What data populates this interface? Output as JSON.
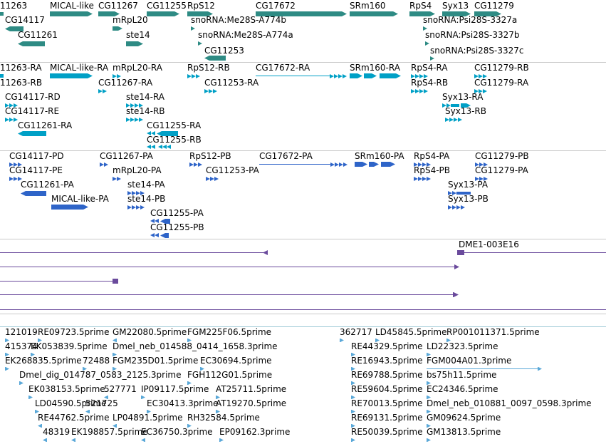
{
  "colors": {
    "gene": "#2e8b84",
    "transcript": "#00a0c6",
    "protein": "#2e64c8",
    "clone": "#6a4a9c",
    "est": "#5aa8d8",
    "separator": "#c8c8c8",
    "separator_blue": "#9fcbd8"
  },
  "tracks": [
    {
      "name": "genes",
      "features": [
        {
          "label": "11263",
          "kind": "gene"
        },
        {
          "label": "MICAL-like",
          "kind": "gene"
        },
        {
          "label": "CG11267",
          "kind": "gene"
        },
        {
          "label": "CG11255",
          "kind": "gene"
        },
        {
          "label": "RpS12",
          "kind": "gene"
        },
        {
          "label": "CG17672",
          "kind": "gene"
        },
        {
          "label": "SRm160",
          "kind": "gene"
        },
        {
          "label": "RpS4",
          "kind": "gene"
        },
        {
          "label": "Syx13",
          "kind": "gene"
        },
        {
          "label": "CG11279",
          "kind": "gene"
        },
        {
          "label": "CG14117",
          "kind": "gene"
        },
        {
          "label": "mRpL20",
          "kind": "gene"
        },
        {
          "label": "snoRNA:Me28S-A774b",
          "kind": "gene"
        },
        {
          "label": "snoRNA:Psi28S-3327a",
          "kind": "gene"
        },
        {
          "label": "CG11261",
          "kind": "gene"
        },
        {
          "label": "ste14",
          "kind": "gene"
        },
        {
          "label": "snoRNA:Me28S-A774a",
          "kind": "gene"
        },
        {
          "label": "snoRNA:Psi28S-3327b",
          "kind": "gene"
        },
        {
          "label": "CG11253",
          "kind": "gene"
        },
        {
          "label": "snoRNA:Psi28S-3327c",
          "kind": "gene"
        }
      ]
    },
    {
      "name": "transcripts",
      "features": [
        {
          "label": "11263-RA"
        },
        {
          "label": "MICAL-like-RA"
        },
        {
          "label": "mRpL20-RA"
        },
        {
          "label": "RpS12-RB"
        },
        {
          "label": "CG17672-RA"
        },
        {
          "label": "SRm160-RA"
        },
        {
          "label": "RpS4-RA"
        },
        {
          "label": "CG11279-RB"
        },
        {
          "label": "11263-RB"
        },
        {
          "label": "CG11267-RA"
        },
        {
          "label": "CG11253-RA"
        },
        {
          "label": "RpS4-RB"
        },
        {
          "label": "CG11279-RA"
        },
        {
          "label": "CG14117-RD"
        },
        {
          "label": "ste14-RA"
        },
        {
          "label": "Syx13-RA"
        },
        {
          "label": "CG14117-RE"
        },
        {
          "label": "ste14-RB"
        },
        {
          "label": "Syx13-RB"
        },
        {
          "label": "CG11261-RA"
        },
        {
          "label": "CG11255-RA"
        },
        {
          "label": "CG11255-RB"
        }
      ]
    },
    {
      "name": "proteins",
      "features": [
        {
          "label": "CG14117-PD"
        },
        {
          "label": "CG11267-PA"
        },
        {
          "label": "RpS12-PB"
        },
        {
          "label": "CG17672-PA"
        },
        {
          "label": "SRm160-PA"
        },
        {
          "label": "RpS4-PA"
        },
        {
          "label": "CG11279-PB"
        },
        {
          "label": "CG14117-PE"
        },
        {
          "label": "mRpL20-PA"
        },
        {
          "label": "CG11253-PA"
        },
        {
          "label": "RpS4-PB"
        },
        {
          "label": "CG11279-PA"
        },
        {
          "label": "CG11261-PA"
        },
        {
          "label": "ste14-PA"
        },
        {
          "label": "Syx13-PA"
        },
        {
          "label": "MICAL-like-PA"
        },
        {
          "label": "ste14-PB"
        },
        {
          "label": "Syx13-PB"
        },
        {
          "label": "CG11255-PA"
        },
        {
          "label": "CG11255-PB"
        }
      ]
    },
    {
      "name": "clones",
      "features": [
        {
          "label": "DME1-003E16"
        }
      ]
    },
    {
      "name": "ests",
      "features": [
        {
          "label": "121019"
        },
        {
          "label": "RE09723.5prime"
        },
        {
          "label": "GM22080.5prime"
        },
        {
          "label": "FGM225F06.5prime"
        },
        {
          "label": "362717"
        },
        {
          "label": "LD45845.5prime"
        },
        {
          "label": "RP001011371.5prime"
        },
        {
          "label": "415374"
        },
        {
          "label": "EK053839.5prime"
        },
        {
          "label": "Dmel_neb_014588_0414_1658.3prime"
        },
        {
          "label": "RE44329.5prime"
        },
        {
          "label": "LD22323.5prime"
        },
        {
          "label": "EK268835.5prime"
        },
        {
          "label": "72488"
        },
        {
          "label": "FGM235D01.5prime"
        },
        {
          "label": "EC30694.5prime"
        },
        {
          "label": "RE16943.5prime"
        },
        {
          "label": "FGM004A01.3prime"
        },
        {
          "label": "Dmel_dig_014787_0583_2125.3prime"
        },
        {
          "label": "FGH112G01.5prime"
        },
        {
          "label": "RE69788.5prime"
        },
        {
          "label": "bs75h11.5prime"
        },
        {
          "label": "EK038153.5prime"
        },
        {
          "label": "527771"
        },
        {
          "label": "IP09117.5prime"
        },
        {
          "label": "AT25711.5prime"
        },
        {
          "label": "RE59604.5prime"
        },
        {
          "label": "EC24346.5prime"
        },
        {
          "label": "LD04590.5prime"
        },
        {
          "label": "521725"
        },
        {
          "label": "EC30413.3prime"
        },
        {
          "label": "AT19270.5prime"
        },
        {
          "label": "RE70013.5prime"
        },
        {
          "label": "Dmel_neb_010881_0097_0598.3prime"
        },
        {
          "label": "RE44762.5prime"
        },
        {
          "label": "LP04891.5prime"
        },
        {
          "label": "RH32584.5prime"
        },
        {
          "label": "RE69131.5prime"
        },
        {
          "label": "GM09624.5prime"
        },
        {
          "label": "48319"
        },
        {
          "label": "EK198857.5prime"
        },
        {
          "label": "EC36750.3prime"
        },
        {
          "label": "EP09162.3prime"
        },
        {
          "label": "RE50039.5prime"
        },
        {
          "label": "GM13813.5prime"
        }
      ]
    }
  ]
}
